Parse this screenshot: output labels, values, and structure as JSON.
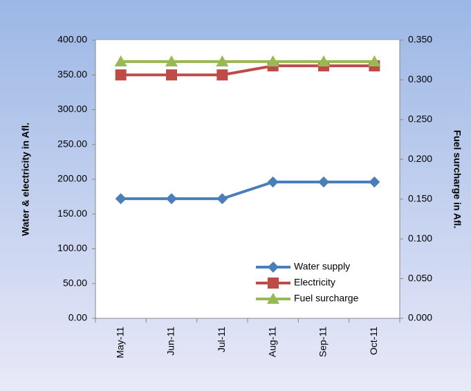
{
  "chart_data": {
    "type": "line",
    "categories": [
      "May-11",
      "Jun-11",
      "Jul-11",
      "Aug-11",
      "Sep-11",
      "Oct-11"
    ],
    "series": [
      {
        "name": "Water supply",
        "color": "#4a7ebb",
        "marker": "diamond",
        "values": [
          172,
          172,
          172,
          196,
          196,
          196
        ]
      },
      {
        "name": "Electricity",
        "color": "#be4b48",
        "marker": "square",
        "values": [
          350,
          350,
          350,
          363,
          363,
          363
        ]
      },
      {
        "name": "Fuel surcharge",
        "color": "#98b954",
        "marker": "triangle",
        "axis": "y2",
        "values": [
          0.323,
          0.323,
          0.323,
          0.323,
          0.323,
          0.323
        ]
      }
    ],
    "ylabel": "Water & electricity in Afl.",
    "y2label": "Fuel surcharge in Afl.",
    "ylim": [
      0,
      400
    ],
    "yticks": [
      {
        "value": 0,
        "label": "0.00"
      },
      {
        "value": 50,
        "label": "50.00"
      },
      {
        "value": 100,
        "label": "100.00"
      },
      {
        "value": 150,
        "label": "150.00"
      },
      {
        "value": 200,
        "label": "200.00"
      },
      {
        "value": 250,
        "label": "250.00"
      },
      {
        "value": 300,
        "label": "300.00"
      },
      {
        "value": 350,
        "label": "350.00"
      },
      {
        "value": 400,
        "label": "400.00"
      }
    ],
    "y2lim": [
      0,
      0.35
    ],
    "y2ticks": [
      {
        "value": 0,
        "label": "0.000"
      },
      {
        "value": 0.05,
        "label": "0.050"
      },
      {
        "value": 0.1,
        "label": "0.100"
      },
      {
        "value": 0.15,
        "label": "0.150"
      },
      {
        "value": 0.2,
        "label": "0.200"
      },
      {
        "value": 0.25,
        "label": "0.250"
      },
      {
        "value": 0.3,
        "label": "0.300"
      },
      {
        "value": 0.35,
        "label": "0.350"
      }
    ],
    "grid": false,
    "legend": "lower right"
  }
}
